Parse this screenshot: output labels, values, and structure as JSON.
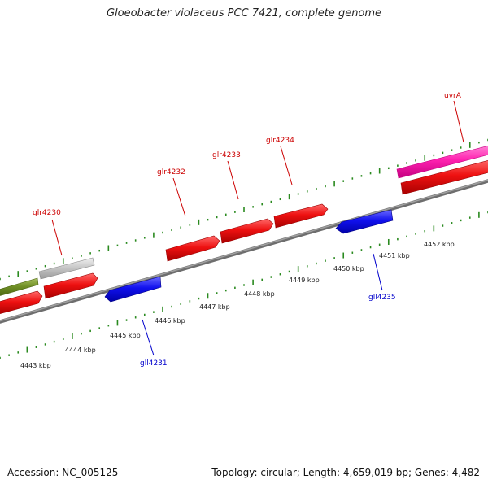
{
  "title": "Gloeobacter violaceus PCC 7421, complete genome",
  "footer": {
    "accession": "Accession: NC_005125",
    "summary": "Topology: circular; Length: 4,659,019 bp; Genes: 4,482"
  },
  "colors": {
    "forward_label": "#cc0000",
    "reverse_label": "#0000cc",
    "tick": "#2a8a1f",
    "backbone": "#808080"
  },
  "scale": {
    "unit": "kbp",
    "labels": [
      "4443 kbp",
      "4444 kbp",
      "4445 kbp",
      "4446 kbp",
      "4447 kbp",
      "4448 kbp",
      "4449 kbp",
      "4450 kbp",
      "4451 kbp",
      "4452 kbp"
    ]
  },
  "genes": [
    {
      "label": "glr4230",
      "strand": "forward"
    },
    {
      "label": "glr4232",
      "strand": "forward"
    },
    {
      "label": "glr4233",
      "strand": "forward"
    },
    {
      "label": "glr4234",
      "strand": "forward"
    },
    {
      "label": "uvrA",
      "strand": "forward"
    },
    {
      "label": "gll4231",
      "strand": "reverse"
    },
    {
      "label": "gll4235",
      "strand": "reverse"
    }
  ]
}
